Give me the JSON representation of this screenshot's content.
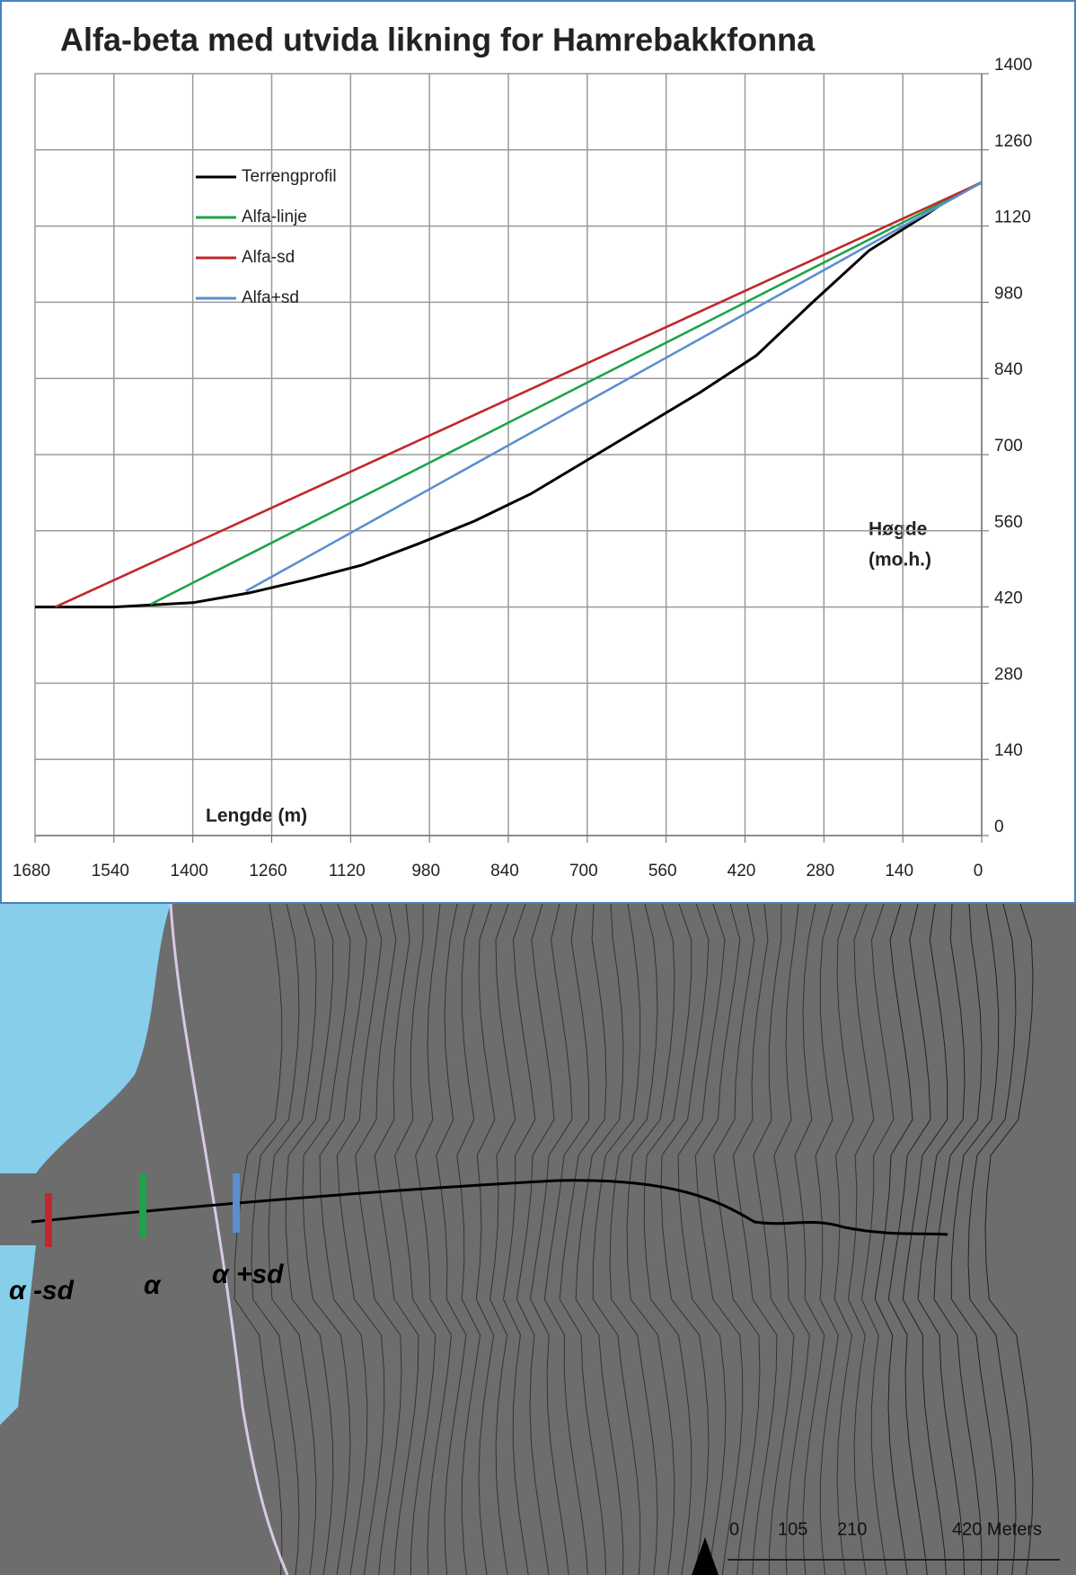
{
  "chart_data": {
    "type": "line",
    "title": "Alfa-beta med utvida likning for Hamrebakkfonna",
    "x_label": "Lengde (m)",
    "y_label": [
      "Høgde",
      "(mo.h.)"
    ],
    "xlim": [
      1680,
      0
    ],
    "xticks": [
      1680,
      1540,
      1400,
      1260,
      1120,
      980,
      840,
      700,
      560,
      420,
      280,
      140,
      0
    ],
    "ylim": [
      0,
      1400
    ],
    "yticks": [
      0,
      140,
      280,
      420,
      560,
      700,
      840,
      980,
      1120,
      1260,
      1400
    ],
    "grid": true,
    "legend": "upper left",
    "series": [
      {
        "name": "Terrengprofil",
        "color": "#000000",
        "x": [
          1680,
          1540,
          1400,
          1300,
          1200,
          1100,
          1000,
          900,
          800,
          700,
          600,
          500,
          400,
          300,
          200,
          100,
          50,
          0
        ],
        "values": [
          420,
          420,
          428,
          446,
          470,
          497,
          536,
          578,
          628,
          690,
          752,
          814,
          882,
          980,
          1075,
          1140,
          1175,
          1200
        ]
      },
      {
        "name": "Alfa-linje",
        "color": "#1fa34a",
        "x": [
          1475,
          0
        ],
        "values": [
          425,
          1200
        ]
      },
      {
        "name": "Alfa-sd",
        "color": "#c0282d",
        "x": [
          1644,
          0
        ],
        "values": [
          420,
          1200
        ]
      },
      {
        "name": "Alfa+sd",
        "color": "#5b8fd1",
        "x": [
          1306,
          0
        ],
        "values": [
          449,
          1200
        ]
      }
    ]
  },
  "map": {
    "markers": [
      "α -sd",
      "α",
      "α +sd"
    ],
    "scale_labels": [
      "0",
      "105",
      "210",
      "420 Meters"
    ]
  }
}
